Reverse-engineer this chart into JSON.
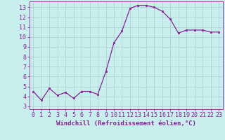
{
  "x": [
    0,
    1,
    2,
    3,
    4,
    5,
    6,
    7,
    8,
    9,
    10,
    11,
    12,
    13,
    14,
    15,
    16,
    17,
    18,
    19,
    20,
    21,
    22,
    23
  ],
  "y": [
    4.5,
    3.6,
    4.8,
    4.1,
    4.4,
    3.8,
    4.5,
    4.5,
    4.2,
    6.5,
    9.4,
    10.6,
    12.9,
    13.2,
    13.2,
    13.0,
    12.6,
    11.8,
    10.4,
    10.7,
    10.7,
    10.7,
    10.5,
    10.5
  ],
  "line_color": "#882299",
  "marker_color": "#882299",
  "bg_color": "#C8EEEE",
  "grid_color": "#AACCCC",
  "xlabel": "Windchill (Refroidissement éolien,°C)",
  "xlim": [
    -0.5,
    23.5
  ],
  "ylim": [
    2.7,
    13.6
  ],
  "yticks": [
    3,
    4,
    5,
    6,
    7,
    8,
    9,
    10,
    11,
    12,
    13
  ],
  "xticks": [
    0,
    1,
    2,
    3,
    4,
    5,
    6,
    7,
    8,
    9,
    10,
    11,
    12,
    13,
    14,
    15,
    16,
    17,
    18,
    19,
    20,
    21,
    22,
    23
  ],
  "xlabel_color": "#882299",
  "tick_color": "#882299",
  "axis_label_fontsize": 6.5,
  "tick_fontsize": 6.0
}
